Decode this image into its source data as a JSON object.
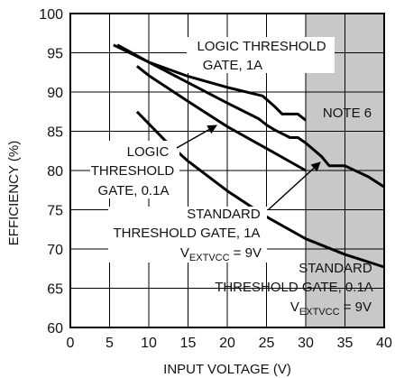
{
  "chart_data": {
    "type": "line",
    "xlabel": "INPUT VOLTAGE (V)",
    "ylabel": "EFFICIENCY (%)",
    "xlim": [
      0,
      40
    ],
    "ylim": [
      60,
      100
    ],
    "xticks": [
      0,
      5,
      10,
      15,
      20,
      25,
      30,
      35,
      40
    ],
    "yticks": [
      60,
      65,
      70,
      75,
      80,
      85,
      90,
      95,
      100
    ],
    "grid": true,
    "shaded_region": {
      "x_start": 30,
      "x_end": 40,
      "color": "#c8c8c8",
      "label": "NOTE 6"
    },
    "series": [
      {
        "name": "LOGIC THRESHOLD GATE, 1A",
        "x": [
          5.5,
          10,
          15,
          20,
          24.5,
          26,
          27,
          29,
          30
        ],
        "y": [
          96,
          93.8,
          92,
          90.6,
          89.5,
          88.2,
          87.2,
          87.2,
          86.4
        ]
      },
      {
        "name": "LOGIC THRESHOLD GATE, 0.1A",
        "x": [
          8.5,
          10,
          15,
          20,
          25,
          30
        ],
        "y": [
          93.3,
          92.1,
          88.8,
          85.6,
          82.8,
          80
        ]
      },
      {
        "name": "STANDARD THRESHOLD GATE, 1A V_EXTVCC = 9V",
        "x": [
          6,
          10,
          15,
          20,
          24,
          25,
          26,
          28,
          29,
          30,
          32,
          33,
          35,
          38,
          40
        ],
        "y": [
          96,
          93.8,
          91.2,
          88.6,
          86.6,
          85.8,
          85.2,
          84.2,
          84.2,
          83.5,
          81.8,
          80.6,
          80.6,
          79.2,
          77.9
        ]
      },
      {
        "name": "STANDARD THRESHOLD GATE, 0.1A V_EXTVCC = 9V",
        "x": [
          8.5,
          12,
          15,
          20,
          25,
          30,
          35,
          40
        ],
        "y": [
          87.5,
          83.9,
          81.2,
          77.4,
          74.1,
          71.3,
          69.3,
          67.7
        ]
      }
    ],
    "annotations": [
      {
        "lines": [
          "LOGIC THRESHOLD",
          "GATE, 1A"
        ],
        "subscript": ""
      },
      {
        "lines": [
          "LOGIC",
          "THRESHOLD",
          "GATE, 0.1A"
        ],
        "subscript": ""
      },
      {
        "lines": [
          "STANDARD",
          "THRESHOLD GATE, 1A"
        ],
        "vprefix": "V",
        "subscript": "EXTVCC",
        "vsuffix": " = 9V"
      },
      {
        "lines": [
          "STANDARD",
          "THRESHOLD GATE, 0.1A"
        ],
        "vprefix": "V",
        "subscript": "EXTVCC",
        "vsuffix": " = 9V"
      }
    ]
  }
}
